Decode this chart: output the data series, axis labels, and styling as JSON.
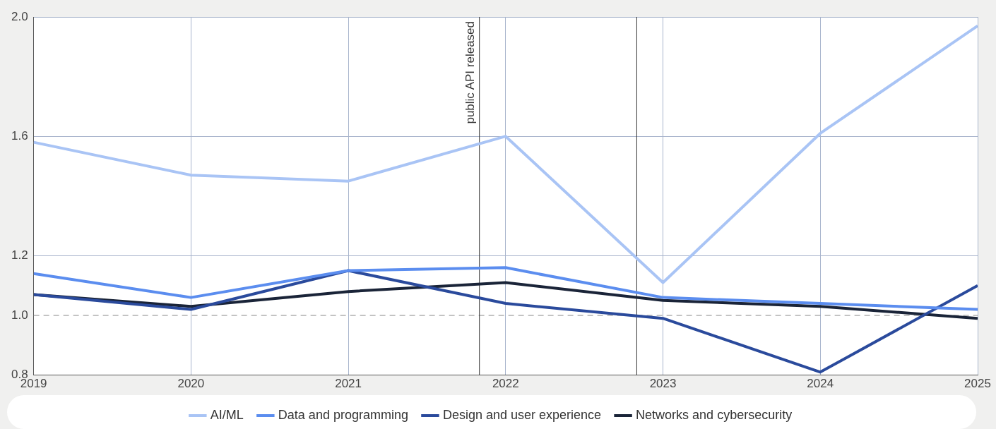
{
  "chart_data": {
    "type": "line",
    "x": [
      "2019",
      "2020",
      "2021",
      "2022",
      "2023",
      "2024",
      "2025"
    ],
    "series": [
      {
        "name": "AI/ML",
        "color": "#a9c4f5",
        "values": [
          1.58,
          1.47,
          1.45,
          1.6,
          1.11,
          1.61,
          1.97
        ]
      },
      {
        "name": "Data and programming",
        "color": "#5b8def",
        "values": [
          1.14,
          1.06,
          1.15,
          1.16,
          1.06,
          1.04,
          1.02
        ]
      },
      {
        "name": "Design and user experience",
        "color": "#2a4a9c",
        "values": [
          1.07,
          1.02,
          1.15,
          1.04,
          0.99,
          0.81,
          1.1
        ]
      },
      {
        "name": "Networks and cybersecurity",
        "color": "#1a2438",
        "values": [
          1.07,
          1.03,
          1.08,
          1.11,
          1.05,
          1.03,
          0.99
        ]
      }
    ],
    "xlim": [
      "2019",
      "2025"
    ],
    "xticks": [
      "2019",
      "2020",
      "2021",
      "2022",
      "2023",
      "2024",
      "2025"
    ],
    "ylim": [
      0.8,
      2.0
    ],
    "yticks": [
      0.8,
      {
        "value": 1,
        "label": "1.0"
      },
      1.2,
      1.6,
      {
        "value": 2,
        "label": "2.0"
      }
    ],
    "ref_lines": [
      {
        "axis": "y",
        "value": 1.0,
        "label": null,
        "color": "#888888",
        "line_style": "dashed"
      },
      {
        "axis": "x",
        "value": "2021-11",
        "label": "public API released",
        "color": "#333333",
        "line_style": "solid"
      },
      {
        "axis": "x",
        "value": "2022-11",
        "label": null,
        "color": "#333333",
        "line_style": "solid"
      }
    ],
    "grid": true,
    "legend": "bottom",
    "marker": "none",
    "line_style": "solid"
  }
}
